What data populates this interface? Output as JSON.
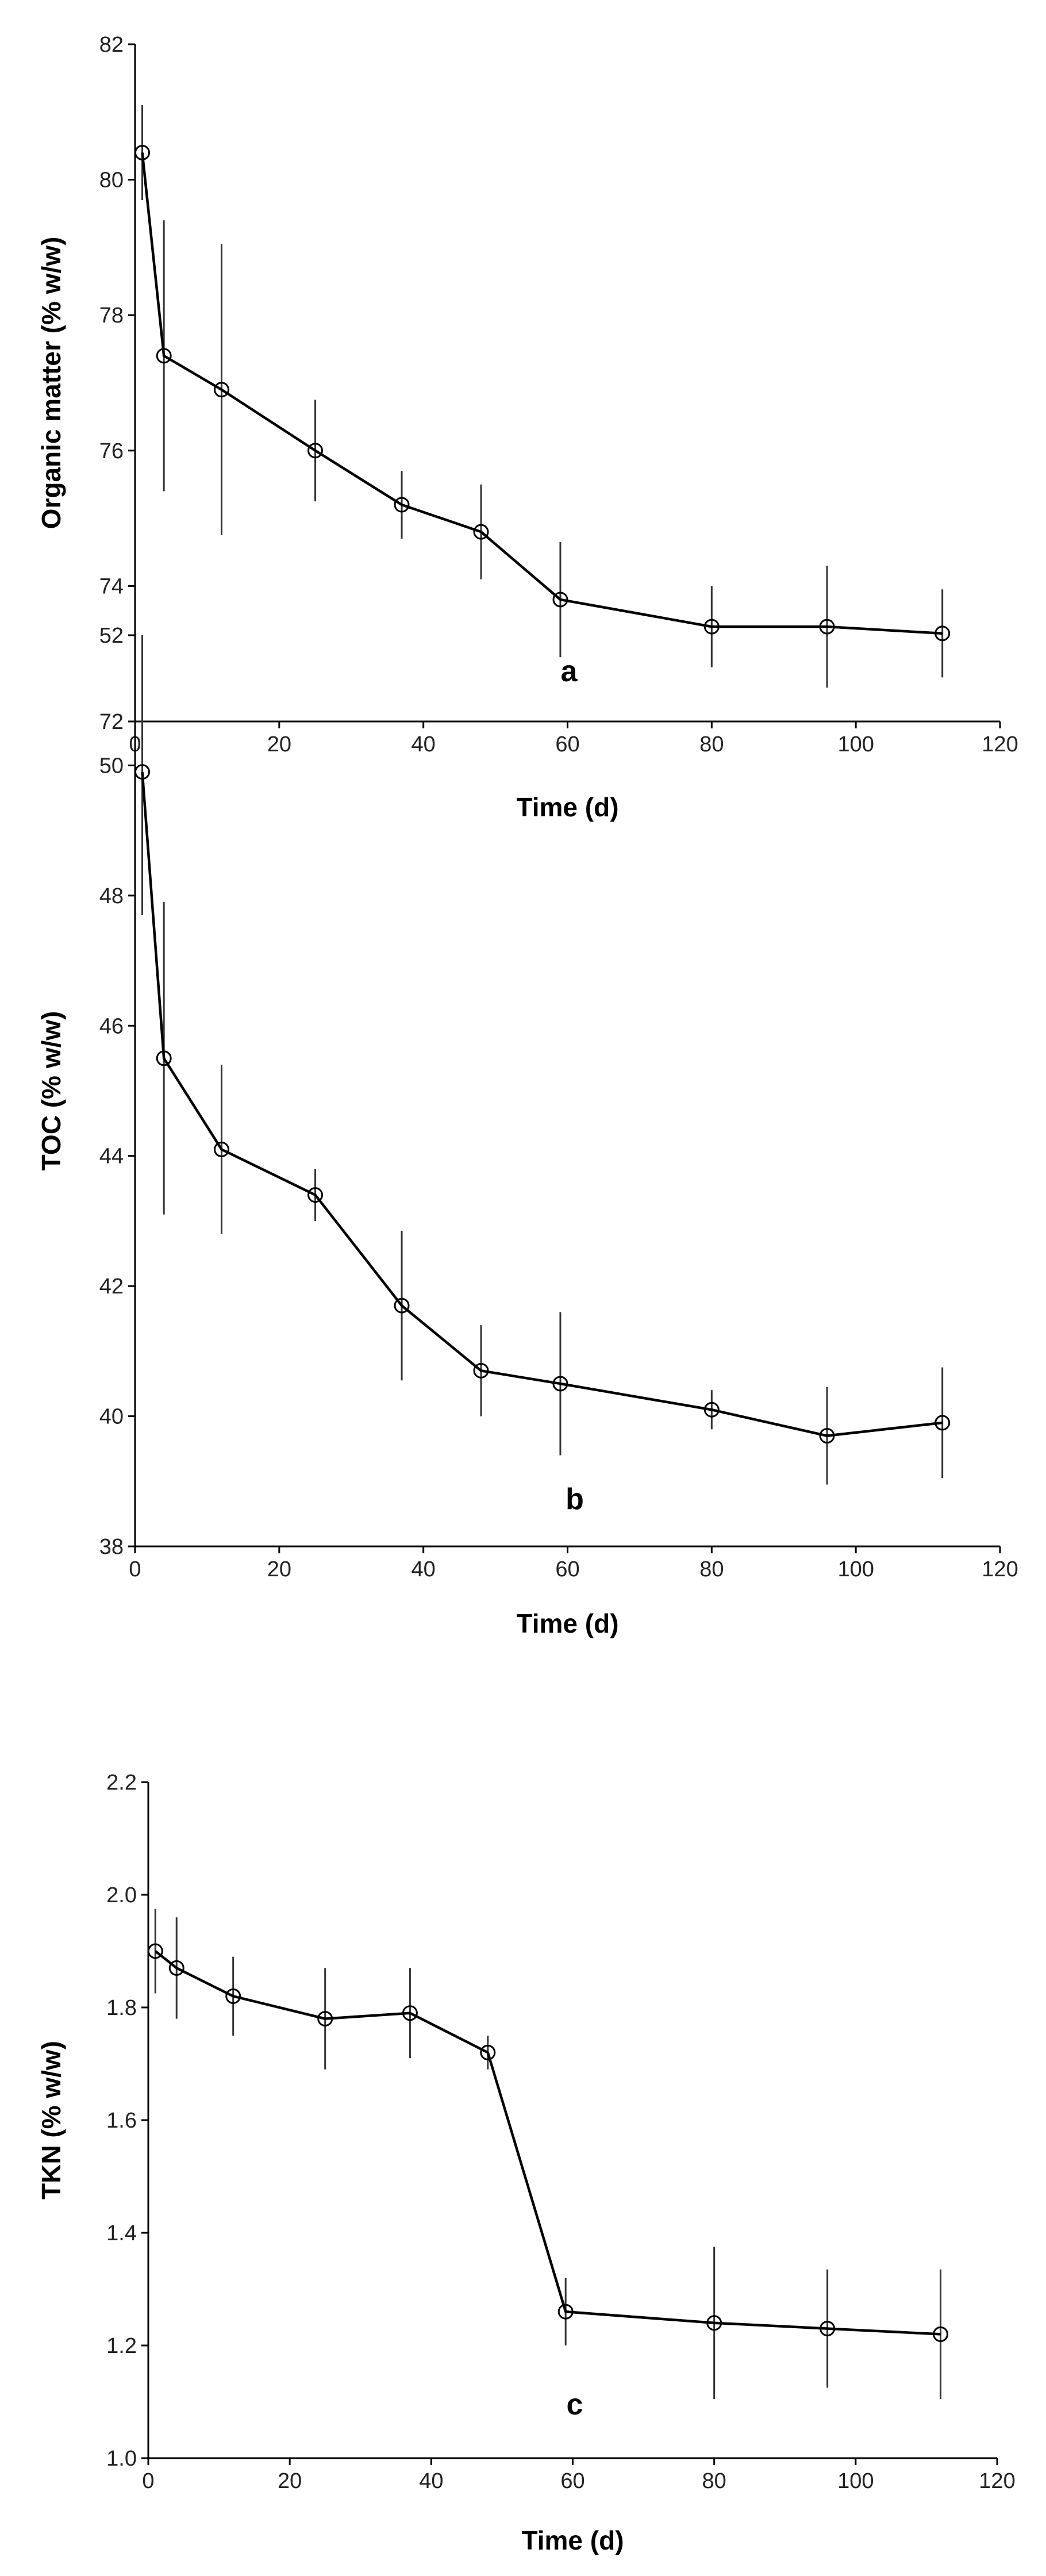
{
  "chart_data": [
    {
      "type": "line",
      "panel": "a",
      "xlabel": "Time (d)",
      "ylabel": "Organic matter (% w/w)",
      "xlim": [
        0,
        120
      ],
      "ylim": [
        72,
        82
      ],
      "xticks": [
        0,
        20,
        40,
        60,
        80,
        100,
        120
      ],
      "yticks": [
        72,
        74,
        76,
        78,
        80,
        82
      ],
      "x": [
        1,
        4,
        12,
        25,
        37,
        48,
        59,
        80,
        96,
        112
      ],
      "values": [
        80.4,
        77.4,
        76.9,
        76.0,
        75.2,
        74.8,
        73.8,
        73.4,
        73.4,
        73.3
      ],
      "errors": [
        0.7,
        2.0,
        2.15,
        0.75,
        0.5,
        0.7,
        0.85,
        0.6,
        0.9,
        0.65
      ]
    },
    {
      "type": "line",
      "panel": "b",
      "xlabel": "Time (d)",
      "ylabel": "TOC (% w/w)",
      "xlim": [
        0,
        120
      ],
      "ylim": [
        38,
        52
      ],
      "xticks": [
        0,
        20,
        40,
        60,
        80,
        100,
        120
      ],
      "yticks": [
        38,
        40,
        42,
        44,
        46,
        48,
        50,
        52
      ],
      "x": [
        1,
        4,
        12,
        25,
        37,
        48,
        59,
        80,
        96,
        112
      ],
      "values": [
        49.9,
        45.5,
        44.1,
        43.4,
        41.7,
        40.7,
        40.5,
        40.1,
        39.7,
        39.9
      ],
      "errors": [
        2.2,
        2.4,
        1.3,
        0.4,
        1.15,
        0.7,
        1.1,
        0.3,
        0.75,
        0.85
      ]
    },
    {
      "type": "line",
      "panel": "c",
      "xlabel": "Time (d)",
      "ylabel": "TKN (% w/w)",
      "xlim": [
        0,
        120
      ],
      "ylim": [
        1.0,
        2.2
      ],
      "xticks": [
        0,
        20,
        40,
        60,
        80,
        100,
        120
      ],
      "yticks": [
        "1.0",
        "1.2",
        "1.4",
        "1.6",
        "1.8",
        "2.0",
        "2.2"
      ],
      "x": [
        1,
        4,
        12,
        25,
        37,
        48,
        59,
        80,
        96,
        112
      ],
      "values": [
        1.9,
        1.87,
        1.82,
        1.78,
        1.79,
        1.72,
        1.26,
        1.24,
        1.23,
        1.22
      ],
      "errors": [
        0.075,
        0.09,
        0.07,
        0.09,
        0.08,
        0.03,
        0.06,
        0.135,
        0.105,
        0.115
      ]
    }
  ]
}
